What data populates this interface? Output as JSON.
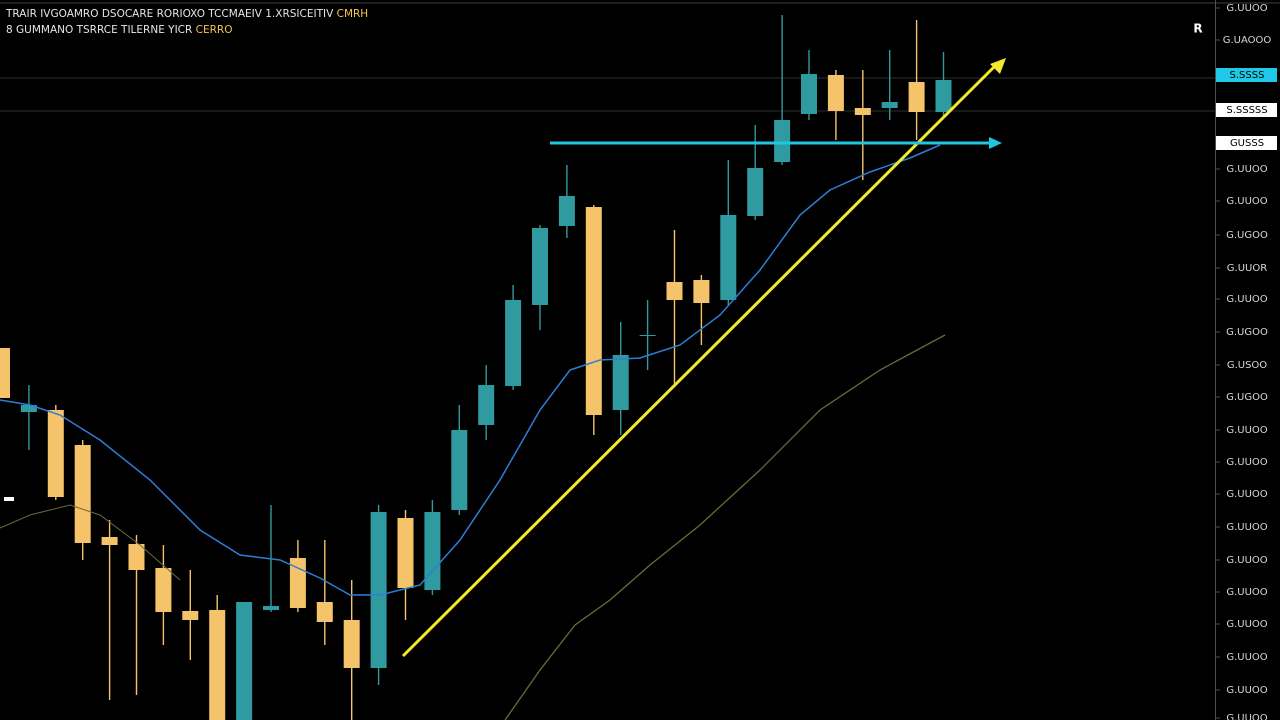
{
  "chart_data": {
    "type": "candlestick",
    "title": {
      "text": "TRAIR IVGOAMRO DSOCARE RORIOXO TCCMAEIV 1.XRSICEITIV",
      "highlight": "CMRH"
    },
    "subtitle": {
      "text": "8 GUMMANO TSRRCE TILERNE YICR",
      "highlight": "CERRO"
    },
    "icon_label": "R",
    "up_color": "#2f9aa0",
    "down_color": "#f5c46a",
    "ylim": [
      0,
      720
    ],
    "yticks": [
      {
        "value": 712,
        "label": "G.UUOO"
      },
      {
        "value": 680,
        "label": "G.UAOOO"
      },
      {
        "value": 551,
        "label": "G.UUOO"
      },
      {
        "value": 519,
        "label": "G.UUOO"
      },
      {
        "value": 485,
        "label": "G.UGOO"
      },
      {
        "value": 452,
        "label": "G.UUOR"
      },
      {
        "value": 421,
        "label": "G.UUOO"
      },
      {
        "value": 388,
        "label": "G.UGOO"
      },
      {
        "value": 355,
        "label": "G.USOO"
      },
      {
        "value": 323,
        "label": "G.UGOO"
      },
      {
        "value": 290,
        "label": "G.UUOO"
      },
      {
        "value": 258,
        "label": "G.UUOO"
      },
      {
        "value": 226,
        "label": "G.UUOO"
      },
      {
        "value": 193,
        "label": "G.UUOO"
      },
      {
        "value": 160,
        "label": "G.UUOO"
      },
      {
        "value": 128,
        "label": "G.UUOO"
      },
      {
        "value": 96,
        "label": "G.UUOO"
      },
      {
        "value": 63,
        "label": "G.UUOO"
      },
      {
        "value": 30,
        "label": "G.UUOO"
      },
      {
        "value": 2,
        "label": "G.UUOO"
      }
    ],
    "price_markers": [
      {
        "value": 645,
        "label": "S.SSSS",
        "color": "#1ec8e6"
      },
      {
        "value": 610,
        "label": "S.SSSSS",
        "color": "#ffffff"
      },
      {
        "value": 577,
        "label": "GUSSS",
        "color": "#ffffff"
      }
    ],
    "series": [
      {
        "open": [
          372,
          308,
          310,
          275,
          183,
          176,
          152,
          109,
          110,
          0,
          110,
          162,
          118,
          100,
          52,
          202,
          130,
          210,
          295,
          334,
          415,
          494,
          513,
          310,
          385,
          438,
          440,
          420,
          504,
          558,
          606,
          645,
          612,
          612,
          638,
          608
        ],
        "high": [
          372,
          335,
          315,
          280,
          200,
          185,
          175,
          150,
          125,
          118,
          215,
          180,
          180,
          140,
          215,
          210,
          220,
          315,
          355,
          435,
          495,
          555,
          515,
          398,
          420,
          490,
          445,
          560,
          595,
          705,
          670,
          650,
          650,
          670,
          700,
          668
        ],
        "low": [
          322,
          270,
          220,
          160,
          20,
          25,
          75,
          60,
          0,
          0,
          108,
          108,
          75,
          0,
          35,
          100,
          125,
          205,
          280,
          330,
          390,
          482,
          285,
          285,
          350,
          335,
          375,
          415,
          500,
          555,
          600,
          580,
          540,
          600,
          580,
          602
        ],
        "close": [
          322,
          315,
          223,
          177,
          175,
          150,
          108,
          100,
          0,
          118,
          114,
          112,
          98,
          52,
          208,
          132,
          208,
          290,
          335,
          420,
          492,
          524,
          305,
          365,
          385,
          420,
          417,
          505,
          552,
          600,
          646,
          609,
          605,
          618,
          608,
          640
        ]
      }
    ]
  }
}
